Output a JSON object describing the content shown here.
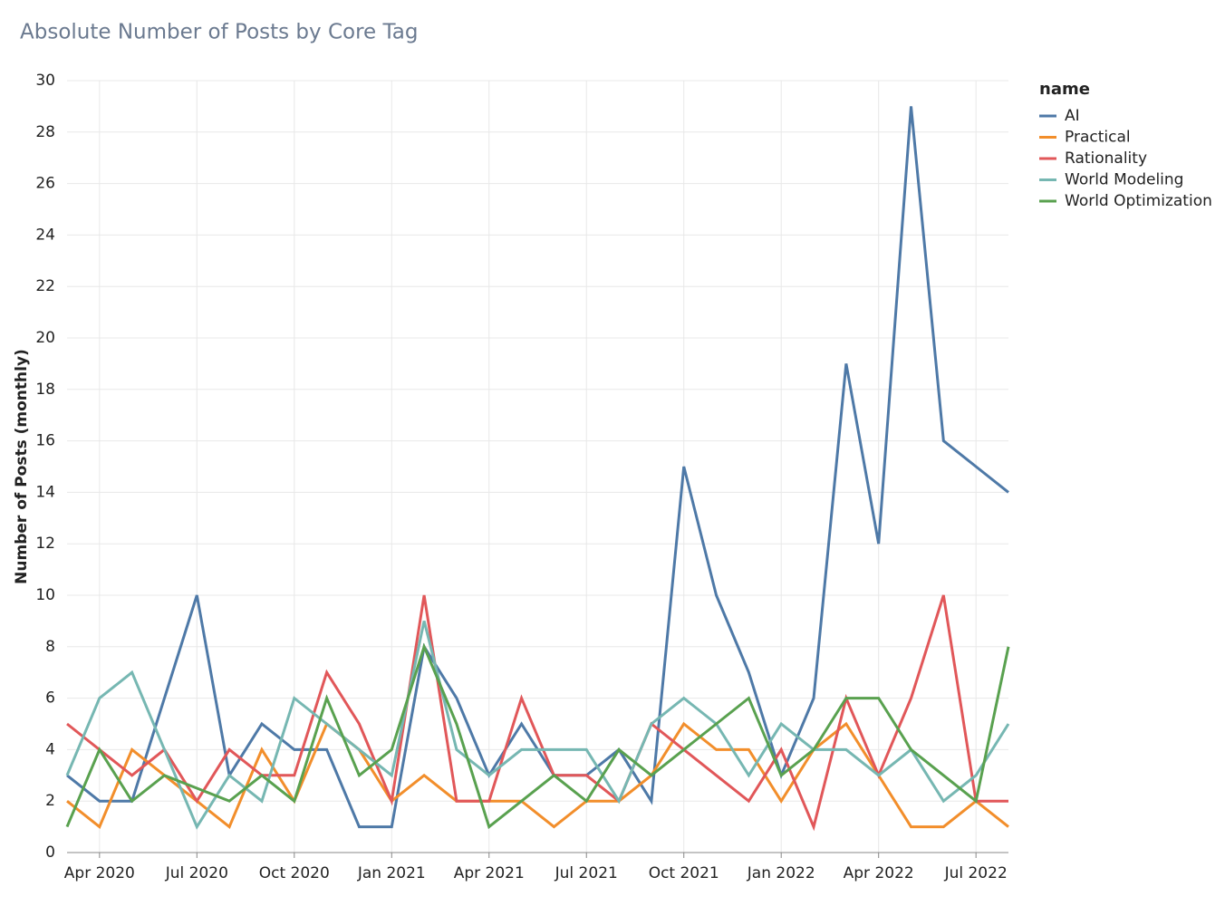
{
  "chart_data": {
    "type": "line",
    "title": "Absolute Number of Posts by Core Tag",
    "y_label": "Number of Posts (monthly)",
    "legend_title": "name",
    "legend_position": "right",
    "grid": true,
    "x": [
      "2020-03",
      "2020-04",
      "2020-05",
      "2020-06",
      "2020-07",
      "2020-08",
      "2020-09",
      "2020-10",
      "2020-11",
      "2020-12",
      "2021-01",
      "2021-02",
      "2021-03",
      "2021-04",
      "2021-05",
      "2021-06",
      "2021-07",
      "2021-08",
      "2021-09",
      "2021-10",
      "2021-11",
      "2021-12",
      "2022-01",
      "2022-02",
      "2022-03",
      "2022-04",
      "2022-05",
      "2022-06",
      "2022-07",
      "2022-08"
    ],
    "xticks": [
      {
        "value": "2020-04",
        "label": "Apr 2020"
      },
      {
        "value": "2020-07",
        "label": "Jul 2020"
      },
      {
        "value": "2020-10",
        "label": "Oct 2020"
      },
      {
        "value": "2021-01",
        "label": "Jan 2021"
      },
      {
        "value": "2021-04",
        "label": "Apr 2021"
      },
      {
        "value": "2021-07",
        "label": "Jul 2021"
      },
      {
        "value": "2021-10",
        "label": "Oct 2021"
      },
      {
        "value": "2022-01",
        "label": "Jan 2022"
      },
      {
        "value": "2022-04",
        "label": "Apr 2022"
      },
      {
        "value": "2022-07",
        "label": "Jul 2022"
      }
    ],
    "ylim": [
      0,
      30
    ],
    "yticks": [
      0,
      2,
      4,
      6,
      8,
      10,
      12,
      14,
      16,
      18,
      20,
      22,
      24,
      26,
      28,
      30
    ],
    "series": [
      {
        "name": "AI",
        "color": "#4e79a7",
        "values": [
          3,
          2,
          2,
          6,
          10,
          3,
          5,
          4,
          4,
          1,
          1,
          8,
          6,
          3,
          5,
          3,
          3,
          4,
          2,
          15,
          10,
          7,
          3,
          6,
          19,
          12,
          29,
          16,
          15,
          14
        ]
      },
      {
        "name": "Practical",
        "color": "#f28e2b",
        "values": [
          2,
          1,
          4,
          3,
          2,
          1,
          4,
          2,
          5,
          4,
          2,
          3,
          2,
          2,
          2,
          1,
          2,
          2,
          3,
          5,
          4,
          4,
          2,
          4,
          5,
          3,
          1,
          1,
          2,
          1
        ]
      },
      {
        "name": "Rationality",
        "color": "#e15759",
        "values": [
          5,
          4,
          3,
          4,
          2,
          4,
          3,
          3,
          7,
          5,
          2,
          10,
          2,
          2,
          6,
          3,
          3,
          2,
          5,
          4,
          3,
          2,
          4,
          1,
          6,
          3,
          6,
          10,
          2,
          2
        ]
      },
      {
        "name": "World Modeling",
        "color": "#76b7b2",
        "values": [
          3,
          6,
          7,
          4,
          1,
          3,
          2,
          6,
          5,
          4,
          3,
          9,
          4,
          3,
          4,
          4,
          4,
          2,
          5,
          6,
          5,
          3,
          5,
          4,
          4,
          3,
          4,
          2,
          3,
          5
        ]
      },
      {
        "name": "World Optimization",
        "color": "#59a14f",
        "values": [
          1,
          4,
          2,
          3,
          2.5,
          2,
          3,
          2,
          6,
          3,
          4,
          8,
          5,
          1,
          2,
          3,
          2,
          4,
          3,
          4,
          5,
          6,
          3,
          4,
          6,
          6,
          4,
          3,
          2,
          8
        ]
      }
    ]
  }
}
